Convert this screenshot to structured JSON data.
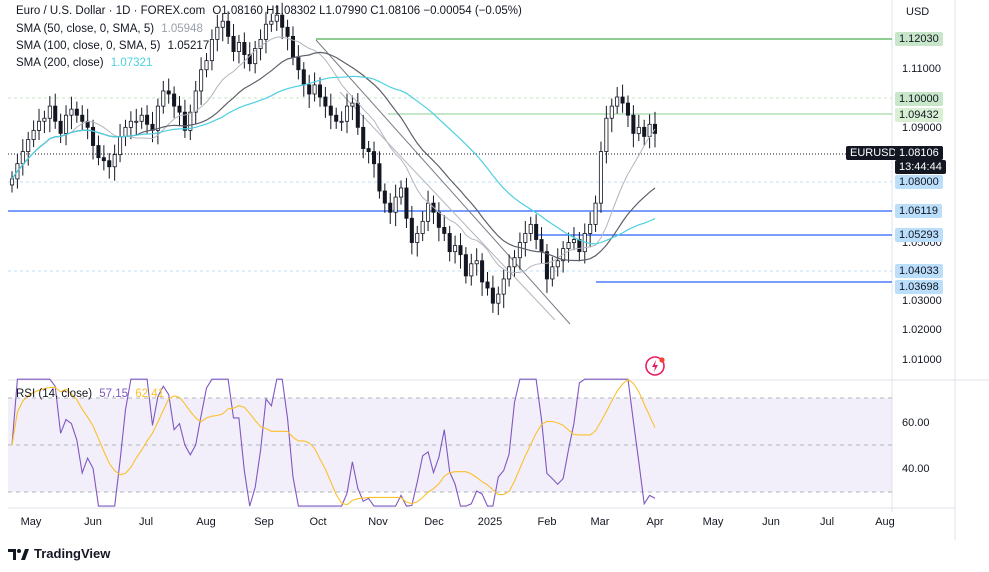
{
  "header": {
    "symbol_line": "Euro / U.S. Dollar · 1D · FOREX.com",
    "ohlc": "O1.08160 H1.08302 L1.07990 C1.08106 −0.00054 (−0.05%)",
    "sma50_label": "SMA (50, close, 0, SMA, 5)",
    "sma50_value": "1.05948",
    "sma100_label": "SMA (100, close, 0, SMA, 5)",
    "sma100_value": "1.05217",
    "sma200_label": "SMA (200, close)",
    "sma200_value": "1.07321",
    "rsi_label": "RSI (14, close)",
    "rsi_value": "57.15",
    "rsi_ma_value": "62.41"
  },
  "currency": "USD",
  "price_axis": {
    "ticks": [
      "1.11000",
      "1.09000",
      "1.05000",
      "1.03000",
      "1.02000",
      "1.01000"
    ]
  },
  "price_tags": [
    {
      "label": "1.12030",
      "color": "#c8e6c9",
      "text_color": "#131722"
    },
    {
      "label": "1.10000",
      "color": "#c8e6c9",
      "text_color": "#131722"
    },
    {
      "label": "1.09432",
      "color": "#d8efd4",
      "text_color": "#131722"
    },
    {
      "label": "EURUSD",
      "color": "#131722",
      "text_color": "#ffffff"
    },
    {
      "label": "1.08106",
      "color": "#131722",
      "text_color": "#ffffff"
    },
    {
      "label": "13:44:44",
      "color": "#131722",
      "text_color": "#ffffff"
    },
    {
      "label": "1.08000",
      "color": "#bbdefb",
      "text_color": "#131722"
    },
    {
      "label": "1.06119",
      "color": "#bbdefb",
      "text_color": "#131722"
    },
    {
      "label": "1.05293",
      "color": "#bbdefb",
      "text_color": "#131722"
    },
    {
      "label": "1.04033",
      "color": "#bbdefb",
      "text_color": "#131722"
    },
    {
      "label": "1.03698",
      "color": "#bbdefb",
      "text_color": "#131722"
    }
  ],
  "rsi_axis": {
    "ticks": [
      "60.00",
      "40.00"
    ]
  },
  "months": [
    "May",
    "Jun",
    "Jul",
    "Aug",
    "Sep",
    "Oct",
    "Nov",
    "Dec",
    "2025",
    "Feb",
    "Mar",
    "Apr",
    "May",
    "Jun",
    "Jul",
    "Aug"
  ],
  "brand": "TradingView",
  "colors": {
    "up": "#131722",
    "sma50": "#b2b5be",
    "sma100": "#5d606b",
    "sma200": "#4dd0e1",
    "rsi": "#7e57c2",
    "rsi_ma": "#fbc02d",
    "support": "#2962ff",
    "resistance": "#4caf50"
  },
  "chart_data": {
    "type": "candlestick",
    "y_range": [
      1.0,
      1.125
    ],
    "horizontal_levels": [
      1.1203,
      1.1,
      1.09432,
      1.08,
      1.06119,
      1.05293,
      1.04033,
      1.03698
    ],
    "closes": [
      1.066,
      1.071,
      1.075,
      1.079,
      1.082,
      1.085,
      1.086,
      1.09,
      1.085,
      1.081,
      1.087,
      1.089,
      1.087,
      1.085,
      1.083,
      1.077,
      1.073,
      1.072,
      1.07,
      1.074,
      1.08,
      1.083,
      1.085,
      1.085,
      1.087,
      1.084,
      1.082,
      1.09,
      1.095,
      1.094,
      1.09,
      1.088,
      1.082,
      1.088,
      1.095,
      1.102,
      1.105,
      1.112,
      1.116,
      1.118,
      1.113,
      1.108,
      1.111,
      1.107,
      1.104,
      1.109,
      1.112,
      1.117,
      1.118,
      1.12,
      1.116,
      1.113,
      1.106,
      1.102,
      1.097,
      1.094,
      1.097,
      1.093,
      1.09,
      1.087,
      1.085,
      1.085,
      1.09,
      1.091,
      1.083,
      1.076,
      1.075,
      1.071,
      1.062,
      1.058,
      1.055,
      1.06,
      1.063,
      1.053,
      1.045,
      1.048,
      1.052,
      1.058,
      1.055,
      1.05,
      1.048,
      1.042,
      1.044,
      1.041,
      1.034,
      1.038,
      1.039,
      1.032,
      1.03,
      1.025,
      1.028,
      1.033,
      1.037,
      1.04,
      1.045,
      1.048,
      1.051,
      1.046,
      1.042,
      1.033,
      1.037,
      1.039,
      1.043,
      1.045,
      1.046,
      1.042,
      1.048,
      1.051,
      1.058,
      1.075,
      1.086,
      1.09,
      1.093,
      1.091,
      1.087,
      1.081,
      1.083,
      1.08,
      1.084,
      1.081
    ]
  }
}
